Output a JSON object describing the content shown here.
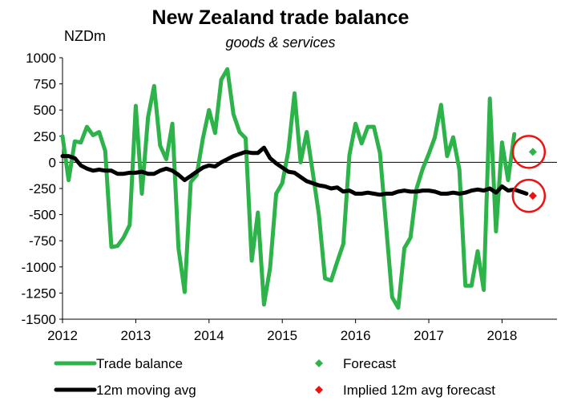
{
  "chart_data": {
    "type": "line",
    "title": "New Zealand trade balance",
    "subtitle": "goods & services",
    "ylabel": "NZDm",
    "xlabel": "",
    "ylim": [
      -1500,
      1000
    ],
    "xlim": [
      2012,
      2018.75
    ],
    "yticks": [
      "1000",
      "750",
      "500",
      "250",
      "0",
      "-250",
      "-500",
      "-750",
      "-1000",
      "-1250",
      "-1500"
    ],
    "xticks": [
      "2012",
      "2013",
      "2014",
      "2015",
      "2016",
      "2017",
      "2018"
    ],
    "grid": false,
    "legend_placement": "bottom",
    "series": [
      {
        "name": "Trade balance",
        "color": "#2db34a",
        "x": [
          2012.0,
          2012.083,
          2012.167,
          2012.25,
          2012.333,
          2012.417,
          2012.5,
          2012.583,
          2012.667,
          2012.75,
          2012.833,
          2012.917,
          2013.0,
          2013.083,
          2013.167,
          2013.25,
          2013.333,
          2013.417,
          2013.5,
          2013.583,
          2013.667,
          2013.75,
          2013.833,
          2013.917,
          2014.0,
          2014.083,
          2014.167,
          2014.25,
          2014.333,
          2014.417,
          2014.5,
          2014.583,
          2014.667,
          2014.75,
          2014.833,
          2014.917,
          2015.0,
          2015.083,
          2015.167,
          2015.25,
          2015.333,
          2015.417,
          2015.5,
          2015.583,
          2015.667,
          2015.75,
          2015.833,
          2015.917,
          2016.0,
          2016.083,
          2016.167,
          2016.25,
          2016.333,
          2016.417,
          2016.5,
          2016.583,
          2016.667,
          2016.75,
          2016.833,
          2016.917,
          2017.0,
          2017.083,
          2017.167,
          2017.25,
          2017.333,
          2017.417,
          2017.5,
          2017.583,
          2017.667,
          2017.75,
          2017.833,
          2017.917,
          2018.0,
          2018.083,
          2018.167,
          2018.25,
          2018.333
        ],
        "values": [
          250,
          -170,
          200,
          190,
          340,
          260,
          290,
          110,
          -810,
          -800,
          -720,
          -600,
          540,
          -300,
          430,
          730,
          160,
          30,
          370,
          -820,
          -1240,
          -190,
          -120,
          230,
          500,
          280,
          790,
          890,
          460,
          290,
          230,
          -940,
          -480,
          -1360,
          -1010,
          -300,
          -200,
          110,
          660,
          0,
          290,
          -100,
          -500,
          -1110,
          -1130,
          -950,
          -780,
          70,
          370,
          180,
          340,
          340,
          90,
          -600,
          -1290,
          -1390,
          -820,
          -720,
          -250,
          -60,
          80,
          240,
          550,
          60,
          240,
          -70,
          -1180,
          -1180,
          -850,
          -1220,
          610,
          -660,
          190,
          -170,
          270,
          null,
          null
        ]
      },
      {
        "name": "12m moving avg",
        "color": "#000000",
        "x": [
          2012.0,
          2012.083,
          2012.167,
          2012.25,
          2012.333,
          2012.417,
          2012.5,
          2012.583,
          2012.667,
          2012.75,
          2012.833,
          2012.917,
          2013.0,
          2013.083,
          2013.167,
          2013.25,
          2013.333,
          2013.417,
          2013.5,
          2013.583,
          2013.667,
          2013.75,
          2013.833,
          2013.917,
          2014.0,
          2014.083,
          2014.167,
          2014.25,
          2014.333,
          2014.417,
          2014.5,
          2014.583,
          2014.667,
          2014.75,
          2014.833,
          2014.917,
          2015.0,
          2015.083,
          2015.167,
          2015.25,
          2015.333,
          2015.417,
          2015.5,
          2015.583,
          2015.667,
          2015.75,
          2015.833,
          2015.917,
          2016.0,
          2016.083,
          2016.167,
          2016.25,
          2016.333,
          2016.417,
          2016.5,
          2016.583,
          2016.667,
          2016.75,
          2016.833,
          2016.917,
          2017.0,
          2017.083,
          2017.167,
          2017.25,
          2017.333,
          2017.417,
          2017.5,
          2017.583,
          2017.667,
          2017.75,
          2017.833,
          2017.917,
          2018.0,
          2018.083,
          2018.167,
          2018.25,
          2018.333
        ],
        "values": [
          60,
          60,
          40,
          -30,
          -60,
          -80,
          -70,
          -80,
          -80,
          -110,
          -110,
          -100,
          -100,
          -90,
          -110,
          -110,
          -80,
          -60,
          -80,
          -120,
          -170,
          -130,
          -90,
          -50,
          -30,
          -40,
          0,
          30,
          60,
          80,
          100,
          90,
          90,
          140,
          40,
          -10,
          -50,
          -90,
          -100,
          -140,
          -180,
          -200,
          -220,
          -230,
          -250,
          -240,
          -280,
          -270,
          -300,
          -300,
          -290,
          -300,
          -310,
          -300,
          -300,
          -280,
          -270,
          -280,
          -280,
          -270,
          -270,
          -280,
          -300,
          -300,
          -290,
          -300,
          -290,
          -270,
          -260,
          -270,
          -250,
          -290,
          -230,
          -270,
          -260,
          -280,
          -300
        ]
      }
    ],
    "forecasts": [
      {
        "name": "Forecast",
        "color": "#2db34a",
        "x": 2018.42,
        "value": 100
      },
      {
        "name": "Implied 12m avg forecast",
        "color": "#ee1111",
        "x": 2018.42,
        "value": -320
      }
    ],
    "annotations": [
      {
        "type": "circle",
        "color": "#ee1111",
        "around": "Forecast"
      },
      {
        "type": "circle",
        "color": "#ee1111",
        "around": "Implied 12m avg forecast"
      }
    ]
  }
}
